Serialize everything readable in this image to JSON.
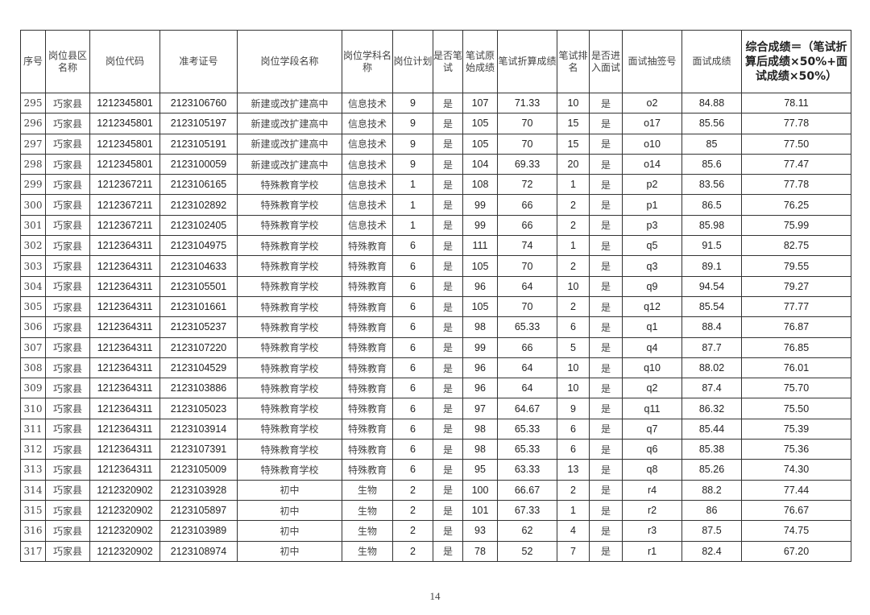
{
  "table": {
    "headers": [
      "序号",
      "岗位县区名称",
      "岗位代码",
      "准考证号",
      "岗位学段名称",
      "岗位学科名称",
      "岗位计划",
      "是否笔试",
      "笔试原始成绩",
      "笔试折算成绩",
      "笔试排名",
      "是否进入面试",
      "面试抽签号",
      "面试成绩",
      "综合成绩＝（笔试折算后成绩×50%+面试成绩×50%）"
    ],
    "rows": [
      [
        "295",
        "巧家县",
        "1212345801",
        "2123106760",
        "新建或改扩建高中",
        "信息技术",
        "9",
        "是",
        "107",
        "71.33",
        "10",
        "是",
        "o2",
        "84.88",
        "78.11"
      ],
      [
        "296",
        "巧家县",
        "1212345801",
        "2123105197",
        "新建或改扩建高中",
        "信息技术",
        "9",
        "是",
        "105",
        "70",
        "15",
        "是",
        "o17",
        "85.56",
        "77.78"
      ],
      [
        "297",
        "巧家县",
        "1212345801",
        "2123105191",
        "新建或改扩建高中",
        "信息技术",
        "9",
        "是",
        "105",
        "70",
        "15",
        "是",
        "o10",
        "85",
        "77.50"
      ],
      [
        "298",
        "巧家县",
        "1212345801",
        "2123100059",
        "新建或改扩建高中",
        "信息技术",
        "9",
        "是",
        "104",
        "69.33",
        "20",
        "是",
        "o14",
        "85.6",
        "77.47"
      ],
      [
        "299",
        "巧家县",
        "1212367211",
        "2123106165",
        "特殊教育学校",
        "信息技术",
        "1",
        "是",
        "108",
        "72",
        "1",
        "是",
        "p2",
        "83.56",
        "77.78"
      ],
      [
        "300",
        "巧家县",
        "1212367211",
        "2123102892",
        "特殊教育学校",
        "信息技术",
        "1",
        "是",
        "99",
        "66",
        "2",
        "是",
        "p1",
        "86.5",
        "76.25"
      ],
      [
        "301",
        "巧家县",
        "1212367211",
        "2123102405",
        "特殊教育学校",
        "信息技术",
        "1",
        "是",
        "99",
        "66",
        "2",
        "是",
        "p3",
        "85.98",
        "75.99"
      ],
      [
        "302",
        "巧家县",
        "1212364311",
        "2123104975",
        "特殊教育学校",
        "特殊教育",
        "6",
        "是",
        "111",
        "74",
        "1",
        "是",
        "q5",
        "91.5",
        "82.75"
      ],
      [
        "303",
        "巧家县",
        "1212364311",
        "2123104633",
        "特殊教育学校",
        "特殊教育",
        "6",
        "是",
        "105",
        "70",
        "2",
        "是",
        "q3",
        "89.1",
        "79.55"
      ],
      [
        "304",
        "巧家县",
        "1212364311",
        "2123105501",
        "特殊教育学校",
        "特殊教育",
        "6",
        "是",
        "96",
        "64",
        "10",
        "是",
        "q9",
        "94.54",
        "79.27"
      ],
      [
        "305",
        "巧家县",
        "1212364311",
        "2123101661",
        "特殊教育学校",
        "特殊教育",
        "6",
        "是",
        "105",
        "70",
        "2",
        "是",
        "q12",
        "85.54",
        "77.77"
      ],
      [
        "306",
        "巧家县",
        "1212364311",
        "2123105237",
        "特殊教育学校",
        "特殊教育",
        "6",
        "是",
        "98",
        "65.33",
        "6",
        "是",
        "q1",
        "88.4",
        "76.87"
      ],
      [
        "307",
        "巧家县",
        "1212364311",
        "2123107220",
        "特殊教育学校",
        "特殊教育",
        "6",
        "是",
        "99",
        "66",
        "5",
        "是",
        "q4",
        "87.7",
        "76.85"
      ],
      [
        "308",
        "巧家县",
        "1212364311",
        "2123104529",
        "特殊教育学校",
        "特殊教育",
        "6",
        "是",
        "96",
        "64",
        "10",
        "是",
        "q10",
        "88.02",
        "76.01"
      ],
      [
        "309",
        "巧家县",
        "1212364311",
        "2123103886",
        "特殊教育学校",
        "特殊教育",
        "6",
        "是",
        "96",
        "64",
        "10",
        "是",
        "q2",
        "87.4",
        "75.70"
      ],
      [
        "310",
        "巧家县",
        "1212364311",
        "2123105023",
        "特殊教育学校",
        "特殊教育",
        "6",
        "是",
        "97",
        "64.67",
        "9",
        "是",
        "q11",
        "86.32",
        "75.50"
      ],
      [
        "311",
        "巧家县",
        "1212364311",
        "2123103914",
        "特殊教育学校",
        "特殊教育",
        "6",
        "是",
        "98",
        "65.33",
        "6",
        "是",
        "q7",
        "85.44",
        "75.39"
      ],
      [
        "312",
        "巧家县",
        "1212364311",
        "2123107391",
        "特殊教育学校",
        "特殊教育",
        "6",
        "是",
        "98",
        "65.33",
        "6",
        "是",
        "q6",
        "85.38",
        "75.36"
      ],
      [
        "313",
        "巧家县",
        "1212364311",
        "2123105009",
        "特殊教育学校",
        "特殊教育",
        "6",
        "是",
        "95",
        "63.33",
        "13",
        "是",
        "q8",
        "85.26",
        "74.30"
      ],
      [
        "314",
        "巧家县",
        "1212320902",
        "2123103928",
        "初中",
        "生物",
        "2",
        "是",
        "100",
        "66.67",
        "2",
        "是",
        "r4",
        "88.2",
        "77.44"
      ],
      [
        "315",
        "巧家县",
        "1212320902",
        "2123105897",
        "初中",
        "生物",
        "2",
        "是",
        "101",
        "67.33",
        "1",
        "是",
        "r2",
        "86",
        "76.67"
      ],
      [
        "316",
        "巧家县",
        "1212320902",
        "2123103989",
        "初中",
        "生物",
        "2",
        "是",
        "93",
        "62",
        "4",
        "是",
        "r3",
        "87.5",
        "74.75"
      ],
      [
        "317",
        "巧家县",
        "1212320902",
        "2123108974",
        "初中",
        "生物",
        "2",
        "是",
        "78",
        "52",
        "7",
        "是",
        "r1",
        "82.4",
        "67.20"
      ]
    ]
  },
  "page_number": "14"
}
